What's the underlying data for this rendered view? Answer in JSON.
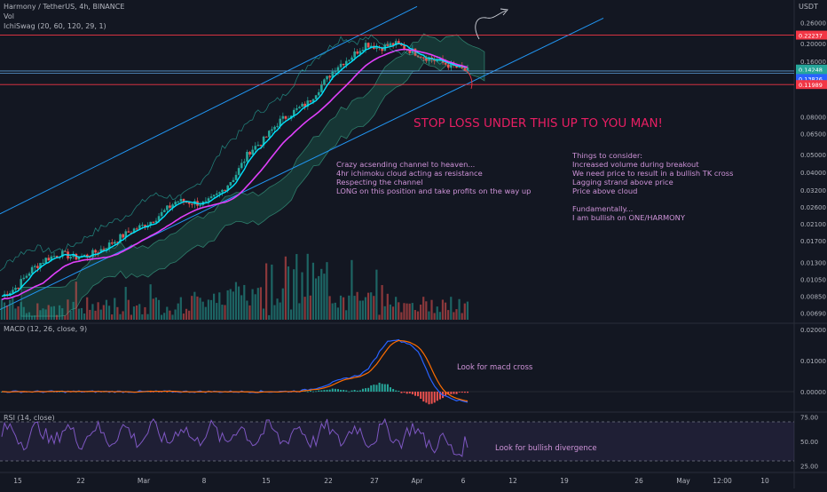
{
  "header": {
    "symbol_line": "Harmony / TetherUS, 4h, BINANCE",
    "vol_label": "Vol",
    "ichi_label": "IchiSwag (20, 60, 120, 29, 1)",
    "currency": "USDT"
  },
  "panes": {
    "macd_label": "MACD (12, 26, close, 9)",
    "rsi_label": "RSI (14, close)"
  },
  "colors": {
    "background": "#131722",
    "up_candle": "#26a69a",
    "down_candle": "#ef5350",
    "tenkan": "#00e5ff",
    "kijun": "#e040fb",
    "channel": "#2196f3",
    "horizontal_red": "#f23645",
    "horizontal_blue": "#5b9bd5",
    "cloud_bull": "#1b5e4e",
    "cloud_bear": "#5a2a2a",
    "annotation_pink": "#e91e63",
    "annotation_lilac": "#ce93d8",
    "rsi_line": "#7e57c2"
  },
  "annotations": {
    "stop_loss": "STOP LOSS UNDER THIS UP TO YOU MAN!",
    "channel_note": [
      "Crazy acsending channel to heaven...",
      "4hr ichimoku cloud acting as resistance",
      "Respecting the channel",
      "LONG on this position and take profits on the way up"
    ],
    "consider_note": [
      "Things to consider:",
      "Increased volume during breakout",
      "We need price to result in a bullish TK cross",
      "Lagging strand above price",
      "Price above cloud",
      "",
      "Fundamentally...",
      "I am bullish on ONE/HARMONY"
    ],
    "macd_note": "Look for macd cross",
    "rsi_note": "Look for bullish divergence"
  },
  "chart_data": {
    "type": "candlestick",
    "symbol": "ONE/USDT",
    "timeframe": "4h",
    "exchange": "BINANCE",
    "x_axis_labels": [
      "15",
      "22",
      "Mar",
      "8",
      "15",
      "22",
      "27",
      "Apr",
      "6",
      "12",
      "19",
      "26",
      "May",
      "12:00",
      "10"
    ],
    "price_axis": {
      "scale": "log",
      "tick_labels": [
        "0.26000",
        "0.20000",
        "0.16000",
        "0.08000",
        "0.06500",
        "0.05000",
        "0.04000",
        "0.03200",
        "0.02600",
        "0.02100",
        "0.01700",
        "0.01300",
        "0.01050",
        "0.00850",
        "0.00690"
      ],
      "ylim": [
        0.0062,
        0.33
      ]
    },
    "price_tags": [
      {
        "label": "0.22237",
        "kind": "resistance"
      },
      {
        "label": "0.14248",
        "kind": "last"
      },
      {
        "label": "01:51:32",
        "kind": "countdown"
      },
      {
        "label": "0.13826",
        "kind": "level"
      },
      {
        "label": "0.11989",
        "kind": "stop"
      }
    ],
    "price_series": {
      "name": "ONE/USDT close",
      "description_points": [
        0.0085,
        0.0095,
        0.0118,
        0.0135,
        0.0145,
        0.0138,
        0.0142,
        0.0155,
        0.0175,
        0.0195,
        0.021,
        0.024,
        0.028,
        0.0275,
        0.027,
        0.031,
        0.038,
        0.052,
        0.06,
        0.075,
        0.085,
        0.095,
        0.12,
        0.15,
        0.17,
        0.2,
        0.19,
        0.2,
        0.185,
        0.17,
        0.16,
        0.15,
        0.142
      ]
    },
    "macd_axis": {
      "tick_labels": [
        "0.02000",
        "0.01000",
        "0.00000"
      ],
      "ylim": [
        -0.006,
        0.022
      ]
    },
    "rsi_axis": {
      "tick_labels": [
        "75.00",
        "50.00",
        "25.00"
      ],
      "ylim": [
        20,
        80
      ]
    },
    "horizontal_levels": [
      0.22237,
      0.142,
      0.13826,
      0.11989
    ],
    "grid": false
  }
}
